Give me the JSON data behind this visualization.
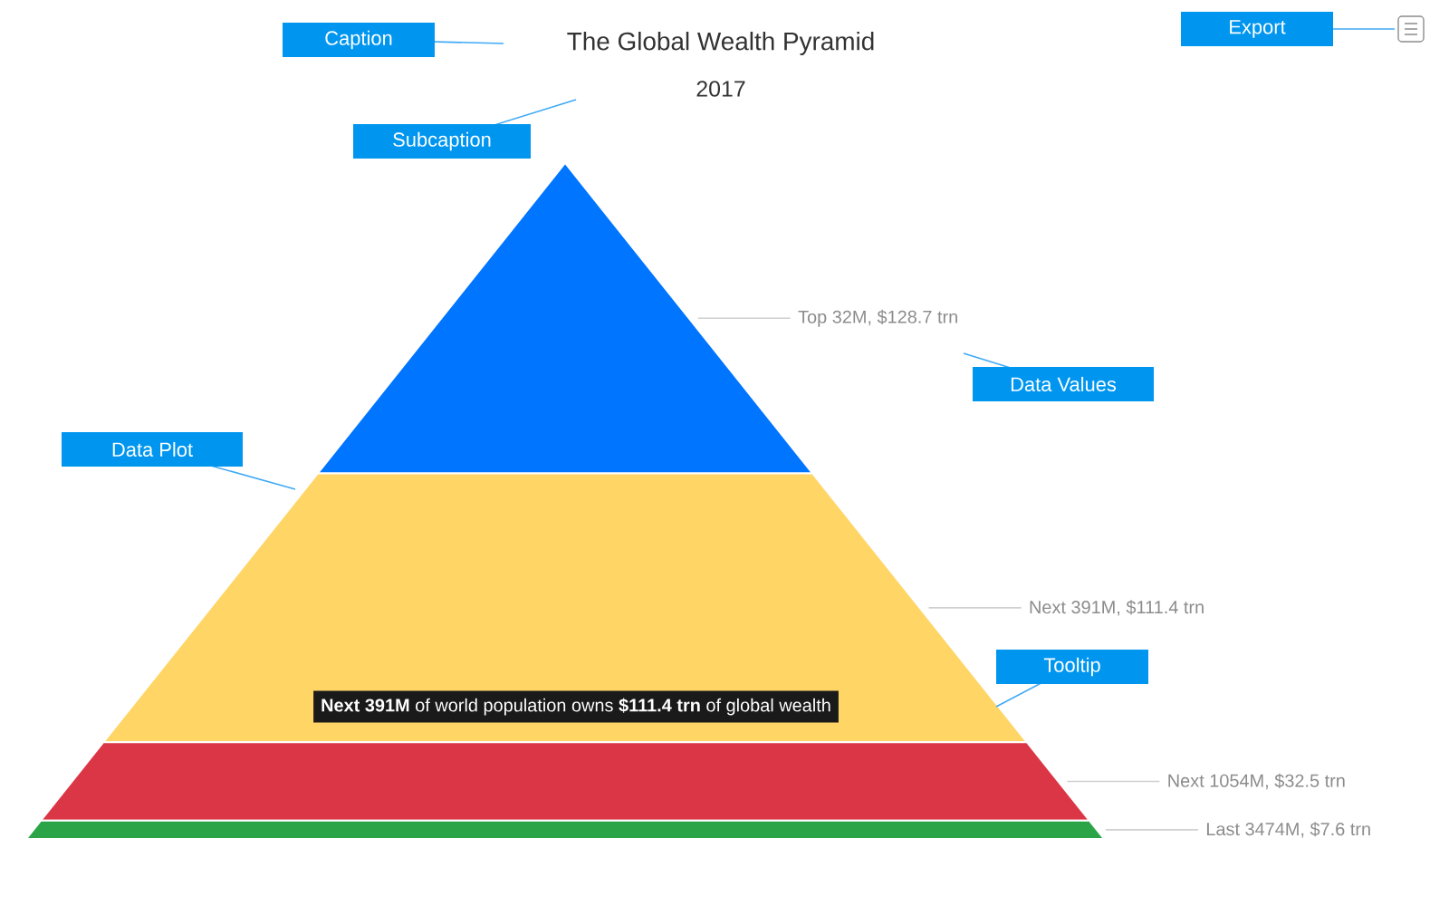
{
  "chart_data": {
    "type": "other",
    "title": "The Global Wealth Pyramid",
    "subtitle": "2017",
    "categories": [
      null,
      null,
      null,
      null
    ],
    "values": [
      128.7,
      111.4,
      32.5,
      7.6
    ],
    "colors": [
      "#0075ff",
      "#ffd566",
      "#db3645",
      "#2ba447"
    ],
    "value_labels": [
      "Top 32M, $128.7 trn",
      "Next 391M, $111.4 trn",
      "Next 1054M, $32.5 trn",
      "Last 3474M, $7.6 trn"
    ],
    "annotations": [
      "Caption",
      "Subcaption",
      "Export",
      "Data Plot",
      "Data Values",
      "Tooltip",
      "**Next 391M** of world population owns **$111.4 trn** of global wealth"
    ]
  }
}
